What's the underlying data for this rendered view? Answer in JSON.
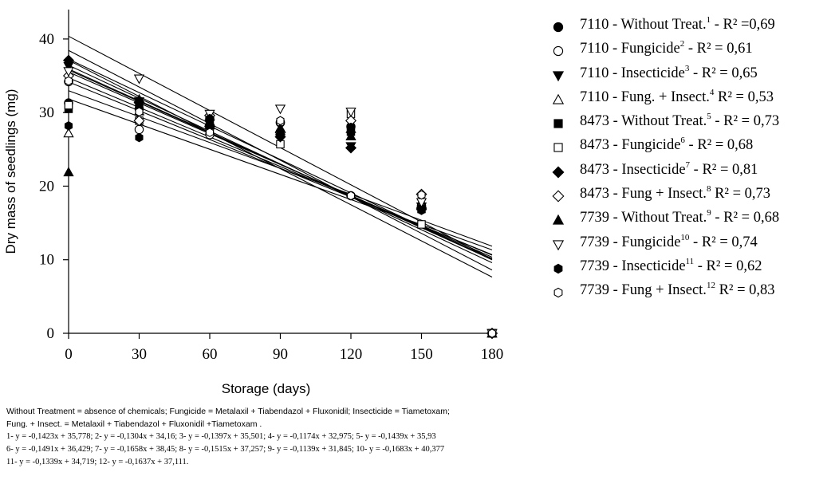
{
  "chart_data": {
    "type": "scatter",
    "xlabel": "Storage (days)",
    "ylabel": "Dry mass of seedlings (mg)",
    "x_ticks": [
      0,
      30,
      60,
      90,
      120,
      150,
      180
    ],
    "y_ticks": [
      0,
      10,
      20,
      30,
      40
    ],
    "xlim": [
      0,
      180
    ],
    "ylim": [
      0,
      44
    ],
    "x": [
      0,
      30,
      60,
      90,
      120,
      150,
      180
    ],
    "series": [
      {
        "name": "7110 - Without Treat.",
        "sup": "1",
        "r2": " - R² =0,69",
        "marker": "circle-filled",
        "values": [
          31.3,
          30.5,
          29.2,
          28.6,
          28.1,
          17.2,
          0
        ],
        "fit": [
          -0.1423,
          35.778
        ]
      },
      {
        "name": "7110 - Fungicide",
        "sup": "2",
        "r2": " - R² = 0,61",
        "marker": "circle-open",
        "values": [
          34.2,
          27.7,
          27.0,
          28.7,
          18.7,
          17.4,
          0
        ],
        "fit": [
          -0.1304,
          34.16
        ]
      },
      {
        "name": "7110 - Insecticide",
        "sup": "3",
        "r2": " - R² = 0,65",
        "marker": "triangle-down-filled",
        "values": [
          36.3,
          31.5,
          28.5,
          26.8,
          25.4,
          17.2,
          0
        ],
        "fit": [
          -0.1397,
          35.501
        ]
      },
      {
        "name": "7110 - Fung. + Insect.",
        "sup": "4",
        "r2": "  R² = 0,53",
        "marker": "triangle-up-open",
        "values": [
          27.2,
          30.2,
          28.8,
          27.5,
          27.8,
          17.6,
          0
        ],
        "fit": [
          -0.1174,
          32.975
        ]
      },
      {
        "name": "8473 - Without Treat.",
        "sup": "5",
        "r2": " - R² = 0,73",
        "marker": "square-filled",
        "values": [
          30.5,
          31.2,
          28.2,
          27.1,
          27.4,
          16.9,
          0
        ],
        "fit": [
          -0.1439,
          35.93
        ]
      },
      {
        "name": "8473 - Fungicide",
        "sup": "6",
        "r2": " - R² = 0,68",
        "marker": "square-open",
        "values": [
          31.0,
          28.9,
          27.9,
          25.7,
          29.8,
          14.8,
          0
        ],
        "fit": [
          -0.1491,
          36.429
        ]
      },
      {
        "name": "8473 - Insecticide",
        "sup": "7",
        "r2": " - R² = 0,81",
        "marker": "diamond-filled",
        "values": [
          37.1,
          31.4,
          28.1,
          26.7,
          25.2,
          16.9,
          0
        ],
        "fit": [
          -0.1658,
          38.45
        ]
      },
      {
        "name": "8473 - Fung + Insect.",
        "sup": "8",
        "r2": "  R² = 0,73",
        "marker": "diamond-open",
        "values": [
          35.0,
          28.9,
          29.6,
          27.3,
          28.9,
          18.9,
          0
        ],
        "fit": [
          -0.1515,
          37.257
        ]
      },
      {
        "name": "7739 - Without Treat.",
        "sup": "9",
        "r2": " - R² = 0,68",
        "marker": "triangle-up-filled",
        "values": [
          21.9,
          31.8,
          28.3,
          27.9,
          26.8,
          17.3,
          0
        ],
        "fit": [
          -0.1139,
          31.845
        ]
      },
      {
        "name": "7739 - Fungicide",
        "sup": "10",
        "r2": " - R² = 0,74",
        "marker": "triangle-down-open",
        "values": [
          35.6,
          34.6,
          29.8,
          30.5,
          30.1,
          17.8,
          0
        ],
        "fit": [
          -0.1683,
          40.377
        ]
      },
      {
        "name": "7739 - Insecticide",
        "sup": "11",
        "r2": " - R² = 0,62",
        "marker": "hexagon-filled",
        "values": [
          28.2,
          26.6,
          29.2,
          27.1,
          28.0,
          16.7,
          0
        ],
        "fit": [
          -0.1339,
          34.719
        ]
      },
      {
        "name": "7739 - Fung + Insect.",
        "sup": "12",
        "r2": "  R² = 0,83",
        "marker": "hexagon-open",
        "values": [
          34.3,
          30.1,
          27.3,
          28.9,
          18.7,
          18.8,
          0
        ],
        "fit": [
          -0.1637,
          37.111
        ]
      }
    ]
  },
  "notes": {
    "line1": "Without Treatment = absence of chemicals; Fungicide = Metalaxil + Tiabendazol + Fluxonidil; Insecticide = Tiametoxam;",
    "line2": "Fung. + Insect. = Metalaxil + Tiabendazol + Fluxonidil +Tiametoxam .",
    "line3": "1- y = -0,1423x + 35,778; 2- y = -0,1304x + 34,16; 3- y = -0,1397x + 35,501; 4- y = -0,1174x + 32,975; 5- y = -0,1439x + 35,93",
    "line4": "6- y = -0,1491x + 36,429; 7- y = -0,1658x + 38,45; 8- y = -0,1515x + 37,257; 9- y = -0,1139x + 31,845; 10- y = -0,1683x + 40,377",
    "line5": "11- y = -0,1339x + 34,719; 12- y = -0,1637x + 37,111."
  }
}
